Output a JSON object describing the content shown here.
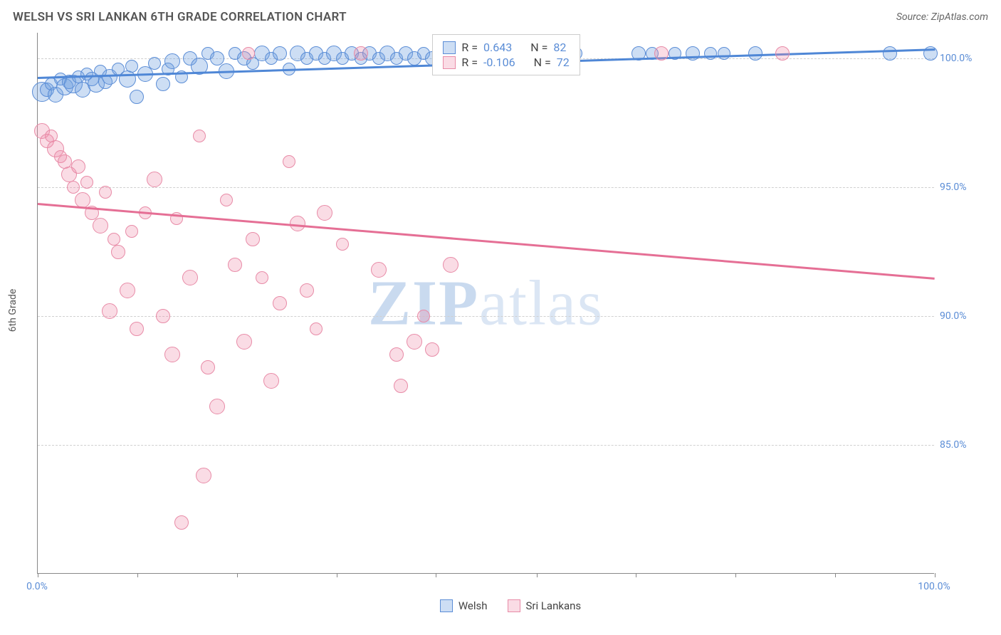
{
  "header": {
    "title": "WELSH VS SRI LANKAN 6TH GRADE CORRELATION CHART",
    "source": "Source: ZipAtlas.com"
  },
  "chart": {
    "type": "scatter",
    "yaxis_title": "6th Grade",
    "xlim": [
      0,
      100
    ],
    "ylim": [
      80,
      101
    ],
    "xtick_positions": [
      0,
      11.1,
      22.2,
      33.3,
      44.4,
      55.6,
      66.7,
      77.8,
      88.9,
      100
    ],
    "xtick_labels": {
      "0": "0.0%",
      "100": "100.0%"
    },
    "ytick_positions": [
      85,
      90,
      95,
      100
    ],
    "ytick_labels": {
      "85": "85.0%",
      "90": "90.0%",
      "95": "95.0%",
      "100": "100.0%"
    },
    "grid_color": "#d0d0d0",
    "background_color": "#ffffff",
    "watermark": "ZIPatlas",
    "series": [
      {
        "name": "Welsh",
        "legend_label": "Welsh",
        "fill": "rgba(112,161,224,0.35)",
        "stroke": "#5b8dd6",
        "r_label": "R =",
        "r_value": "0.643",
        "n_label": "N =",
        "n_value": "82",
        "trend": {
          "x1": 0,
          "y1": 99.3,
          "x2": 100,
          "y2": 100.4,
          "color": "#4f87d6"
        },
        "points": [
          {
            "x": 0.5,
            "y": 98.7,
            "r": 14
          },
          {
            "x": 1,
            "y": 98.8,
            "r": 10
          },
          {
            "x": 1.5,
            "y": 99.0,
            "r": 9
          },
          {
            "x": 2,
            "y": 98.6,
            "r": 11
          },
          {
            "x": 2.5,
            "y": 99.2,
            "r": 9
          },
          {
            "x": 3,
            "y": 98.9,
            "r": 12
          },
          {
            "x": 3.5,
            "y": 99.1,
            "r": 10
          },
          {
            "x": 4,
            "y": 99.0,
            "r": 13
          },
          {
            "x": 4.5,
            "y": 99.3,
            "r": 9
          },
          {
            "x": 5,
            "y": 98.8,
            "r": 11
          },
          {
            "x": 5.5,
            "y": 99.4,
            "r": 9
          },
          {
            "x": 6,
            "y": 99.2,
            "r": 10
          },
          {
            "x": 6.5,
            "y": 99.0,
            "r": 12
          },
          {
            "x": 7,
            "y": 99.5,
            "r": 9
          },
          {
            "x": 7.5,
            "y": 99.1,
            "r": 10
          },
          {
            "x": 8,
            "y": 99.3,
            "r": 11
          },
          {
            "x": 9,
            "y": 99.6,
            "r": 9
          },
          {
            "x": 10,
            "y": 99.2,
            "r": 12
          },
          {
            "x": 10.5,
            "y": 99.7,
            "r": 9
          },
          {
            "x": 11,
            "y": 98.5,
            "r": 10
          },
          {
            "x": 12,
            "y": 99.4,
            "r": 11
          },
          {
            "x": 13,
            "y": 99.8,
            "r": 9
          },
          {
            "x": 14,
            "y": 99.0,
            "r": 10
          },
          {
            "x": 14.5,
            "y": 99.6,
            "r": 9
          },
          {
            "x": 15,
            "y": 99.9,
            "r": 11
          },
          {
            "x": 16,
            "y": 99.3,
            "r": 9
          },
          {
            "x": 17,
            "y": 100.0,
            "r": 10
          },
          {
            "x": 18,
            "y": 99.7,
            "r": 12
          },
          {
            "x": 19,
            "y": 100.2,
            "r": 9
          },
          {
            "x": 20,
            "y": 100.0,
            "r": 10
          },
          {
            "x": 21,
            "y": 99.5,
            "r": 11
          },
          {
            "x": 22,
            "y": 100.2,
            "r": 9
          },
          {
            "x": 23,
            "y": 100.0,
            "r": 10
          },
          {
            "x": 24,
            "y": 99.8,
            "r": 9
          },
          {
            "x": 25,
            "y": 100.2,
            "r": 11
          },
          {
            "x": 26,
            "y": 100.0,
            "r": 9
          },
          {
            "x": 27,
            "y": 100.2,
            "r": 10
          },
          {
            "x": 28,
            "y": 99.6,
            "r": 9
          },
          {
            "x": 29,
            "y": 100.2,
            "r": 11
          },
          {
            "x": 30,
            "y": 100.0,
            "r": 9
          },
          {
            "x": 31,
            "y": 100.2,
            "r": 10
          },
          {
            "x": 32,
            "y": 100.0,
            "r": 9
          },
          {
            "x": 33,
            "y": 100.2,
            "r": 11
          },
          {
            "x": 34,
            "y": 100.0,
            "r": 9
          },
          {
            "x": 35,
            "y": 100.2,
            "r": 10
          },
          {
            "x": 36,
            "y": 100.0,
            "r": 9
          },
          {
            "x": 37,
            "y": 100.2,
            "r": 10
          },
          {
            "x": 38,
            "y": 100.0,
            "r": 9
          },
          {
            "x": 39,
            "y": 100.2,
            "r": 11
          },
          {
            "x": 40,
            "y": 100.0,
            "r": 9
          },
          {
            "x": 41,
            "y": 100.2,
            "r": 10
          },
          {
            "x": 42,
            "y": 100.0,
            "r": 10
          },
          {
            "x": 43,
            "y": 100.2,
            "r": 9
          },
          {
            "x": 44,
            "y": 100.0,
            "r": 10
          },
          {
            "x": 45,
            "y": 100.2,
            "r": 9
          },
          {
            "x": 46,
            "y": 100.0,
            "r": 10
          },
          {
            "x": 47,
            "y": 100.2,
            "r": 9
          },
          {
            "x": 49,
            "y": 100.2,
            "r": 10
          },
          {
            "x": 51,
            "y": 100.2,
            "r": 9
          },
          {
            "x": 53,
            "y": 100.2,
            "r": 10
          },
          {
            "x": 55,
            "y": 100.2,
            "r": 9
          },
          {
            "x": 57,
            "y": 100.2,
            "r": 10
          },
          {
            "x": 60,
            "y": 100.2,
            "r": 9
          },
          {
            "x": 67,
            "y": 100.2,
            "r": 10
          },
          {
            "x": 68.5,
            "y": 100.2,
            "r": 9
          },
          {
            "x": 71,
            "y": 100.2,
            "r": 9
          },
          {
            "x": 73,
            "y": 100.2,
            "r": 10
          },
          {
            "x": 75,
            "y": 100.2,
            "r": 9
          },
          {
            "x": 76.5,
            "y": 100.2,
            "r": 9
          },
          {
            "x": 80,
            "y": 100.2,
            "r": 10
          },
          {
            "x": 95,
            "y": 100.2,
            "r": 10
          },
          {
            "x": 99.5,
            "y": 100.2,
            "r": 10
          }
        ]
      },
      {
        "name": "SriLankans",
        "legend_label": "Sri Lankans",
        "fill": "rgba(238,140,168,0.30)",
        "stroke": "#e88ba7",
        "r_label": "R =",
        "r_value": "-0.106",
        "n_label": "N =",
        "n_value": "72",
        "trend": {
          "x1": 0,
          "y1": 94.4,
          "x2": 100,
          "y2": 91.5,
          "color": "#e56f95"
        },
        "points": [
          {
            "x": 0.5,
            "y": 97.2,
            "r": 11
          },
          {
            "x": 1,
            "y": 96.8,
            "r": 10
          },
          {
            "x": 1.5,
            "y": 97.0,
            "r": 9
          },
          {
            "x": 2,
            "y": 96.5,
            "r": 12
          },
          {
            "x": 2.5,
            "y": 96.2,
            "r": 9
          },
          {
            "x": 3,
            "y": 96.0,
            "r": 10
          },
          {
            "x": 3.5,
            "y": 95.5,
            "r": 11
          },
          {
            "x": 4,
            "y": 95.0,
            "r": 9
          },
          {
            "x": 4.5,
            "y": 95.8,
            "r": 10
          },
          {
            "x": 5,
            "y": 94.5,
            "r": 11
          },
          {
            "x": 5.5,
            "y": 95.2,
            "r": 9
          },
          {
            "x": 6,
            "y": 94.0,
            "r": 10
          },
          {
            "x": 7,
            "y": 93.5,
            "r": 11
          },
          {
            "x": 7.5,
            "y": 94.8,
            "r": 9
          },
          {
            "x": 8,
            "y": 90.2,
            "r": 11
          },
          {
            "x": 8.5,
            "y": 93.0,
            "r": 9
          },
          {
            "x": 9,
            "y": 92.5,
            "r": 10
          },
          {
            "x": 10,
            "y": 91.0,
            "r": 11
          },
          {
            "x": 10.5,
            "y": 93.3,
            "r": 9
          },
          {
            "x": 11,
            "y": 89.5,
            "r": 10
          },
          {
            "x": 12,
            "y": 94.0,
            "r": 9
          },
          {
            "x": 13,
            "y": 95.3,
            "r": 11
          },
          {
            "x": 14,
            "y": 90.0,
            "r": 10
          },
          {
            "x": 15,
            "y": 88.5,
            "r": 11
          },
          {
            "x": 15.5,
            "y": 93.8,
            "r": 9
          },
          {
            "x": 16,
            "y": 82.0,
            "r": 10
          },
          {
            "x": 17,
            "y": 91.5,
            "r": 11
          },
          {
            "x": 18,
            "y": 97.0,
            "r": 9
          },
          {
            "x": 18.5,
            "y": 83.8,
            "r": 11
          },
          {
            "x": 19,
            "y": 88.0,
            "r": 10
          },
          {
            "x": 20,
            "y": 86.5,
            "r": 11
          },
          {
            "x": 21,
            "y": 94.5,
            "r": 9
          },
          {
            "x": 22,
            "y": 92.0,
            "r": 10
          },
          {
            "x": 23,
            "y": 89.0,
            "r": 11
          },
          {
            "x": 23.5,
            "y": 100.2,
            "r": 9
          },
          {
            "x": 24,
            "y": 93.0,
            "r": 10
          },
          {
            "x": 25,
            "y": 91.5,
            "r": 9
          },
          {
            "x": 26,
            "y": 87.5,
            "r": 11
          },
          {
            "x": 27,
            "y": 90.5,
            "r": 10
          },
          {
            "x": 28,
            "y": 96.0,
            "r": 9
          },
          {
            "x": 29,
            "y": 93.6,
            "r": 11
          },
          {
            "x": 30,
            "y": 91.0,
            "r": 10
          },
          {
            "x": 31,
            "y": 89.5,
            "r": 9
          },
          {
            "x": 32,
            "y": 94.0,
            "r": 11
          },
          {
            "x": 34,
            "y": 92.8,
            "r": 9
          },
          {
            "x": 36,
            "y": 100.2,
            "r": 10
          },
          {
            "x": 38,
            "y": 91.8,
            "r": 11
          },
          {
            "x": 40,
            "y": 88.5,
            "r": 10
          },
          {
            "x": 40.5,
            "y": 87.3,
            "r": 10
          },
          {
            "x": 42,
            "y": 89.0,
            "r": 11
          },
          {
            "x": 43,
            "y": 90.0,
            "r": 9
          },
          {
            "x": 44,
            "y": 88.7,
            "r": 10
          },
          {
            "x": 46,
            "y": 92.0,
            "r": 11
          },
          {
            "x": 48,
            "y": 100.2,
            "r": 9
          },
          {
            "x": 50,
            "y": 100.2,
            "r": 10
          },
          {
            "x": 58,
            "y": 100.2,
            "r": 9
          },
          {
            "x": 69.5,
            "y": 100.2,
            "r": 10
          },
          {
            "x": 83,
            "y": 100.2,
            "r": 10
          }
        ]
      }
    ],
    "bottom_legend": [
      {
        "label": "Welsh",
        "fill": "rgba(112,161,224,0.35)",
        "stroke": "#5b8dd6"
      },
      {
        "label": "Sri Lankans",
        "fill": "rgba(238,140,168,0.30)",
        "stroke": "#e88ba7"
      }
    ]
  }
}
